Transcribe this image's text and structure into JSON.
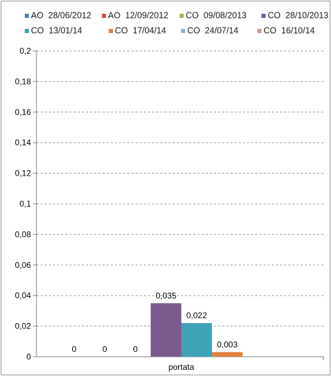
{
  "chart_data": {
    "type": "bar",
    "title": "",
    "xlabel": "",
    "ylabel": "",
    "categories": [
      "portata"
    ],
    "ylim": [
      0,
      0.2
    ],
    "y_ticks": [
      "0",
      "0,02",
      "0,04",
      "0,06",
      "0,08",
      "0,1",
      "0,12",
      "0,14",
      "0,16",
      "0,18",
      "0,2"
    ],
    "grid": true,
    "legend_position": "top",
    "series": [
      {
        "name": "AO  28/06/2012",
        "color": "#4f81bd",
        "values": [
          0
        ],
        "label": "0"
      },
      {
        "name": "AO  12/09/2012",
        "color": "#c0504d",
        "values": [
          0
        ],
        "label": "0"
      },
      {
        "name": "CO  09/08/2013",
        "color": "#9bbb59",
        "values": [
          0
        ],
        "label": "0"
      },
      {
        "name": "CO  28/10/2013",
        "color": "#7b5b8d",
        "values": [
          0.035
        ],
        "label": "0,035"
      },
      {
        "name": "CO  13/01/14",
        "color": "#3fa3b8",
        "values": [
          0.022
        ],
        "label": "0,022"
      },
      {
        "name": "CO  17/04/14",
        "color": "#e0823b",
        "values": [
          0.003
        ],
        "label": "0,003"
      },
      {
        "name": "CO  24/07/14",
        "color": "#95b3d7",
        "values": [
          0
        ],
        "label": ""
      },
      {
        "name": "CO  16/10/14",
        "color": "#d99694",
        "values": [
          0
        ],
        "label": ""
      }
    ]
  }
}
